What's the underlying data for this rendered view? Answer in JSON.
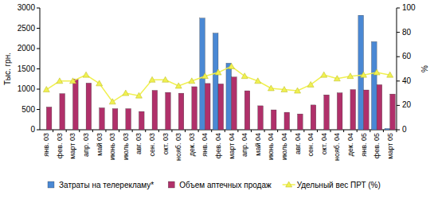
{
  "chart_data": {
    "type": "bar",
    "y_label": "Тыс. грн.",
    "y2_label": "%",
    "categories": [
      "янв. 03",
      "фев. 03",
      "март 03",
      "апр. 03",
      "май 03",
      "июнь 03",
      "июль 03",
      "авг. 03",
      "сен. 03",
      "окт. 03",
      "нояб. 03",
      "дек. 03",
      "янв. 04",
      "фев. 04",
      "март 04",
      "апр. 04",
      "май 04",
      "июнь 04",
      "июль 04",
      "авг. 04",
      "сен. 04",
      "окт. 04",
      "нояб. 04",
      "дек. 04",
      "янв. 05",
      "фев. 05",
      "март 05"
    ],
    "ylim": [
      0,
      3000
    ],
    "yticks": [
      0,
      500,
      1000,
      1500,
      2000,
      2500,
      3000
    ],
    "y2lim": [
      0,
      100
    ],
    "y2ticks": [
      0,
      20,
      40,
      60,
      80,
      100
    ],
    "legend": "bottom",
    "series": [
      {
        "name": "Затраты на телерекламу*",
        "color": "#4a88d4",
        "type": "bar",
        "values": [
          null,
          null,
          null,
          null,
          null,
          null,
          null,
          null,
          null,
          null,
          null,
          null,
          2750,
          2380,
          1640,
          null,
          null,
          null,
          null,
          null,
          null,
          null,
          null,
          null,
          2820,
          2170,
          30
        ]
      },
      {
        "name": "Объем аптечных продаж",
        "color": "#b0306a",
        "type": "bar",
        "values": [
          560,
          890,
          1250,
          1150,
          540,
          520,
          520,
          450,
          970,
          920,
          900,
          1060,
          1140,
          1130,
          1300,
          960,
          590,
          490,
          430,
          390,
          610,
          860,
          910,
          990,
          980,
          1110,
          880
        ]
      },
      {
        "name": "Удельный вес ПРТ (%)",
        "color": "#f0f050",
        "type": "line",
        "axis": "y2",
        "marker": "triangle",
        "values": [
          33,
          40,
          40,
          45,
          38,
          23,
          30,
          28,
          41,
          41,
          36,
          40,
          44,
          47,
          52,
          44,
          40,
          34,
          33,
          32,
          37,
          45,
          42,
          44,
          45,
          47,
          45
        ]
      }
    ]
  }
}
